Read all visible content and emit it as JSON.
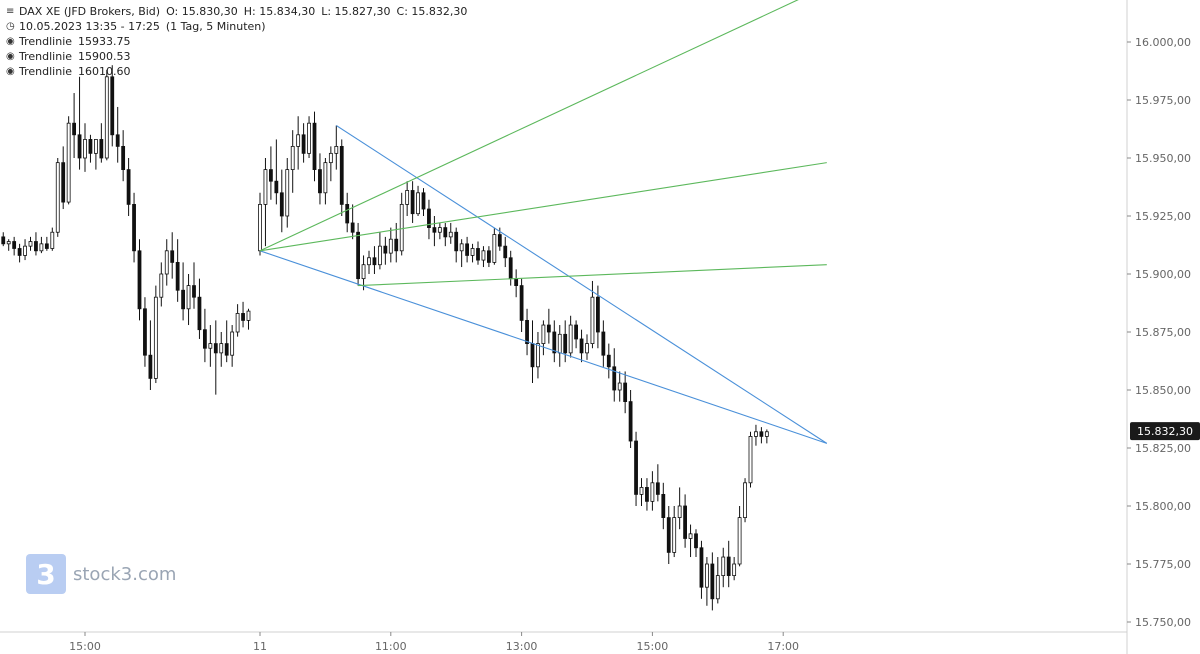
{
  "legend": {
    "symbol_line": {
      "icon": "bar-chart-icon",
      "symbol": "DAX XE (JFD Brokers, Bid)",
      "open": "O: 15.830,30",
      "high": "H: 15.834,30",
      "low": "L: 15.827,30",
      "close": "C: 15.832,30"
    },
    "time_line": {
      "icon": "clock-icon",
      "range": "10.05.2023 13:35 - 17:25",
      "interval": "(1 Tag, 5 Minuten)"
    },
    "trendlines": [
      {
        "icon": "target-icon",
        "label": "Trendlinie",
        "value": "15933.75"
      },
      {
        "icon": "target-icon",
        "label": "Trendlinie",
        "value": "15900.53"
      },
      {
        "icon": "target-icon",
        "label": "Trendlinie",
        "value": "16010.60"
      }
    ]
  },
  "watermark": {
    "logo_glyph": "3",
    "text": "stock3.com"
  },
  "chart_data": {
    "type": "candlestick",
    "symbol": "DAX XE (JFD Brokers, Bid)",
    "interval": "5 Minuten",
    "ylim": [
      15745,
      16025
    ],
    "y_ticks": [
      16000,
      15975,
      15950,
      15925,
      15900,
      15875,
      15850,
      15825,
      15800,
      15775,
      15750
    ],
    "y_tick_labels": [
      "16.000,00",
      "15.975,00",
      "15.950,00",
      "15.925,00",
      "15.900,00",
      "15.875,00",
      "15.850,00",
      "15.825,00",
      "15.800,00",
      "15.775,00",
      "15.750,00"
    ],
    "x_ticks": [
      {
        "label": "15:00",
        "day": 10,
        "time": "15:00"
      },
      {
        "label": "11",
        "day": 11,
        "time": "09:00"
      },
      {
        "label": "11:00",
        "day": 11,
        "time": "11:00"
      },
      {
        "label": "13:00",
        "day": 11,
        "time": "13:00"
      },
      {
        "label": "15:00",
        "day": 11,
        "time": "15:00"
      },
      {
        "label": "17:00",
        "day": 11,
        "time": "17:00"
      }
    ],
    "last_price": 15832.3,
    "last_price_label": "15.832,30",
    "grid": false,
    "candles": [
      [
        "10.05. 13:35",
        15916,
        15918,
        15912,
        15915
      ],
      [
        "10.05. 13:40",
        15915,
        15919,
        15913,
        15916
      ],
      [
        "10.05. 13:45",
        15916,
        15918,
        15912,
        15913
      ],
      [
        "10.05. 13:50",
        15913,
        15915,
        15910,
        15914
      ],
      [
        "10.05. 13:55",
        15914,
        15916,
        15908,
        15911
      ],
      [
        "10.05. 14:00",
        15911,
        15913,
        15905,
        15908
      ],
      [
        "10.05. 14:05",
        15908,
        15915,
        15906,
        15912
      ],
      [
        "10.05. 14:10",
        15912,
        15916,
        15910,
        15914
      ],
      [
        "10.05. 14:15",
        15914,
        15918,
        15908,
        15910
      ],
      [
        "10.05. 14:20",
        15910,
        15916,
        15909,
        15913
      ],
      [
        "10.05. 14:25",
        15913,
        15916,
        15910,
        15911
      ],
      [
        "10.05. 14:30",
        15911,
        15920,
        15910,
        15918
      ],
      [
        "10.05. 14:35",
        15918,
        15950,
        15916,
        15948
      ],
      [
        "10.05. 14:40",
        15948,
        15955,
        15928,
        15931
      ],
      [
        "10.05. 14:45",
        15931,
        15968,
        15930,
        15965
      ],
      [
        "10.05. 14:50",
        15965,
        15978,
        15950,
        15960
      ],
      [
        "10.05. 14:55",
        15960,
        15985,
        15945,
        15950
      ],
      [
        "10.05. 15:00",
        15950,
        15965,
        15944,
        15958
      ],
      [
        "10.05. 15:05",
        15958,
        15960,
        15948,
        15952
      ],
      [
        "10.05. 15:10",
        15952,
        15958,
        15945,
        15958
      ],
      [
        "10.05. 15:15",
        15958,
        15965,
        15948,
        15950
      ],
      [
        "10.05. 15:20",
        15950,
        15988,
        15949,
        15985
      ],
      [
        "10.05. 15:25",
        15985,
        15990,
        15955,
        15960
      ],
      [
        "10.05. 15:30",
        15960,
        15972,
        15948,
        15955
      ],
      [
        "10.05. 15:35",
        15955,
        15962,
        15940,
        15945
      ],
      [
        "10.05. 15:40",
        15945,
        15950,
        15925,
        15930
      ],
      [
        "10.05. 15:45",
        15930,
        15935,
        15905,
        15910
      ],
      [
        "10.05. 15:50",
        15910,
        15915,
        15880,
        15885
      ],
      [
        "10.05. 15:55",
        15885,
        15890,
        15860,
        15865
      ],
      [
        "10.05. 16:00",
        15865,
        15880,
        15850,
        15855
      ],
      [
        "10.05. 16:05",
        15855,
        15895,
        15853,
        15890
      ],
      [
        "10.05. 16:10",
        15890,
        15905,
        15886,
        15900
      ],
      [
        "10.05. 16:15",
        15900,
        15915,
        15895,
        15910
      ],
      [
        "10.05. 16:20",
        15910,
        15918,
        15898,
        15905
      ],
      [
        "10.05. 16:25",
        15905,
        15915,
        15888,
        15893
      ],
      [
        "10.05. 16:30",
        15893,
        15905,
        15880,
        15885
      ],
      [
        "10.05. 16:35",
        15885,
        15900,
        15878,
        15895
      ],
      [
        "10.05. 16:40",
        15895,
        15905,
        15885,
        15890
      ],
      [
        "10.05. 16:45",
        15890,
        15898,
        15872,
        15876
      ],
      [
        "10.05. 16:50",
        15876,
        15885,
        15862,
        15868
      ],
      [
        "10.05. 16:55",
        15868,
        15878,
        15860,
        15870
      ],
      [
        "10.05. 17:00",
        15870,
        15880,
        15848,
        15866
      ],
      [
        "10.05. 17:05",
        15866,
        15875,
        15860,
        15870
      ],
      [
        "10.05. 17:10",
        15870,
        15880,
        15862,
        15865
      ],
      [
        "10.05. 17:15",
        15865,
        15878,
        15860,
        15875
      ],
      [
        "10.05. 17:20",
        15875,
        15887,
        15873,
        15883
      ],
      [
        "10.05. 17:25",
        15883,
        15888,
        15877,
        15880
      ],
      [
        "10.05. 17:30",
        15880,
        15885,
        15876,
        15884
      ],
      [
        "11.05. 09:00",
        15910,
        15935,
        15908,
        15930
      ],
      [
        "11.05. 09:05",
        15930,
        15950,
        15912,
        15945
      ],
      [
        "11.05. 09:10",
        15945,
        15955,
        15932,
        15940
      ],
      [
        "11.05. 09:15",
        15940,
        15958,
        15930,
        15935
      ],
      [
        "11.05. 09:20",
        15935,
        15945,
        15918,
        15925
      ],
      [
        "11.05. 09:25",
        15925,
        15950,
        15920,
        15945
      ],
      [
        "11.05. 09:30",
        15945,
        15962,
        15935,
        15955
      ],
      [
        "11.05. 09:35",
        15955,
        15968,
        15945,
        15960
      ],
      [
        "11.05. 09:40",
        15960,
        15965,
        15948,
        15952
      ],
      [
        "11.05. 09:45",
        15952,
        15968,
        15950,
        15965
      ],
      [
        "11.05. 09:50",
        15965,
        15970,
        15940,
        15945
      ],
      [
        "11.05. 09:55",
        15945,
        15952,
        15930,
        15935
      ],
      [
        "11.05. 10:00",
        15935,
        15950,
        15930,
        15948
      ],
      [
        "11.05. 10:05",
        15948,
        15955,
        15940,
        15952
      ],
      [
        "11.05. 10:10",
        15952,
        15964,
        15945,
        15955
      ],
      [
        "11.05. 10:15",
        15955,
        15958,
        15925,
        15930
      ],
      [
        "11.05. 10:20",
        15930,
        15935,
        15918,
        15922
      ],
      [
        "11.05. 10:25",
        15922,
        15930,
        15915,
        15918
      ],
      [
        "11.05. 10:30",
        15918,
        15922,
        15895,
        15898
      ],
      [
        "11.05. 10:35",
        15898,
        15908,
        15893,
        15904
      ],
      [
        "11.05. 10:40",
        15904,
        15910,
        15900,
        15907
      ],
      [
        "11.05. 10:45",
        15907,
        15912,
        15900,
        15904
      ],
      [
        "11.05. 10:50",
        15904,
        15918,
        15902,
        15912
      ],
      [
        "11.05. 10:55",
        15912,
        15916,
        15904,
        15909
      ],
      [
        "11.05. 11:00",
        15909,
        15920,
        15905,
        15915
      ],
      [
        "11.05. 11:05",
        15915,
        15922,
        15905,
        15910
      ],
      [
        "11.05. 11:10",
        15910,
        15935,
        15908,
        15930
      ],
      [
        "11.05. 11:15",
        15930,
        15940,
        15925,
        15936
      ],
      [
        "11.05. 11:20",
        15936,
        15940,
        15922,
        15926
      ],
      [
        "11.05. 11:25",
        15926,
        15938,
        15925,
        15935
      ],
      [
        "11.05. 11:30",
        15935,
        15937,
        15925,
        15928
      ],
      [
        "11.05. 11:35",
        15928,
        15932,
        15915,
        15920
      ],
      [
        "11.05. 11:40",
        15920,
        15925,
        15912,
        15918
      ],
      [
        "11.05. 11:45",
        15918,
        15922,
        15915,
        15920
      ],
      [
        "11.05. 11:50",
        15920,
        15922,
        15912,
        15916
      ],
      [
        "11.05. 11:55",
        15916,
        15922,
        15913,
        15918
      ],
      [
        "11.05. 12:00",
        15918,
        15920,
        15905,
        15910
      ],
      [
        "11.05. 12:05",
        15910,
        15915,
        15903,
        15913
      ],
      [
        "11.05. 12:10",
        15913,
        15916,
        15905,
        15908
      ],
      [
        "11.05. 12:15",
        15908,
        15913,
        15905,
        15911
      ],
      [
        "11.05. 12:20",
        15911,
        15914,
        15904,
        15906
      ],
      [
        "11.05. 12:25",
        15906,
        15912,
        15903,
        15910
      ],
      [
        "11.05. 12:30",
        15910,
        15912,
        15903,
        15905
      ],
      [
        "11.05. 12:35",
        15905,
        15920,
        15904,
        15917
      ],
      [
        "11.05. 12:40",
        15917,
        15920,
        15910,
        15912
      ],
      [
        "11.05. 12:45",
        15912,
        15916,
        15903,
        15907
      ],
      [
        "11.05. 12:50",
        15907,
        15910,
        15895,
        15898
      ],
      [
        "11.05. 12:55",
        15898,
        15902,
        15890,
        15895
      ],
      [
        "11.05. 13:00",
        15895,
        15898,
        15875,
        15880
      ],
      [
        "11.05. 13:05",
        15880,
        15885,
        15865,
        15870
      ],
      [
        "11.05. 13:10",
        15870,
        15880,
        15853,
        15860
      ],
      [
        "11.05. 13:15",
        15860,
        15875,
        15855,
        15870
      ],
      [
        "11.05. 13:20",
        15870,
        15880,
        15865,
        15878
      ],
      [
        "11.05. 13:25",
        15878,
        15885,
        15870,
        15875
      ],
      [
        "11.05. 13:30",
        15875,
        15880,
        15862,
        15866
      ],
      [
        "11.05. 13:35",
        15866,
        15878,
        15860,
        15874
      ],
      [
        "11.05. 13:40",
        15874,
        15880,
        15862,
        15866
      ],
      [
        "11.05. 13:45",
        15866,
        15882,
        15864,
        15878
      ],
      [
        "11.05. 13:50",
        15878,
        15880,
        15868,
        15872
      ],
      [
        "11.05. 13:55",
        15872,
        15876,
        15862,
        15866
      ],
      [
        "11.05. 14:00",
        15866,
        15874,
        15863,
        15870
      ],
      [
        "11.05. 14:05",
        15870,
        15897,
        15868,
        15890
      ],
      [
        "11.05. 14:10",
        15890,
        15895,
        15868,
        15875
      ],
      [
        "11.05. 14:15",
        15875,
        15880,
        15860,
        15865
      ],
      [
        "11.05. 14:20",
        15865,
        15870,
        15855,
        15860
      ],
      [
        "11.05. 14:25",
        15860,
        15868,
        15845,
        15850
      ],
      [
        "11.05. 14:30",
        15850,
        15858,
        15845,
        15853
      ],
      [
        "11.05. 14:35",
        15853,
        15858,
        15840,
        15845
      ],
      [
        "11.05. 14:40",
        15845,
        15850,
        15825,
        15828
      ],
      [
        "11.05. 14:45",
        15828,
        15832,
        15800,
        15805
      ],
      [
        "11.05. 14:50",
        15805,
        15812,
        15800,
        15808
      ],
      [
        "11.05. 14:55",
        15808,
        15812,
        15798,
        15802
      ],
      [
        "11.05. 15:00",
        15802,
        15815,
        15798,
        15810
      ],
      [
        "11.05. 15:05",
        15810,
        15818,
        15802,
        15805
      ],
      [
        "11.05. 15:10",
        15805,
        15810,
        15790,
        15795
      ],
      [
        "11.05. 15:15",
        15795,
        15800,
        15775,
        15780
      ],
      [
        "11.05. 15:20",
        15780,
        15800,
        15778,
        15795
      ],
      [
        "11.05. 15:25",
        15795,
        15808,
        15790,
        15800
      ],
      [
        "11.05. 15:30",
        15800,
        15805,
        15782,
        15786
      ],
      [
        "11.05. 15:35",
        15786,
        15792,
        15778,
        15788
      ],
      [
        "11.05. 15:40",
        15788,
        15790,
        15778,
        15782
      ],
      [
        "11.05. 15:45",
        15782,
        15785,
        15760,
        15765
      ],
      [
        "11.05. 15:50",
        15765,
        15778,
        15757,
        15775
      ],
      [
        "11.05. 15:55",
        15775,
        15780,
        15755,
        15760
      ],
      [
        "11.05. 16:00",
        15760,
        15778,
        15758,
        15770
      ],
      [
        "11.05. 16:05",
        15770,
        15782,
        15765,
        15778
      ],
      [
        "11.05. 16:10",
        15778,
        15785,
        15765,
        15770
      ],
      [
        "11.05. 16:15",
        15770,
        15778,
        15768,
        15775
      ],
      [
        "11.05. 16:20",
        15775,
        15800,
        15774,
        15795
      ],
      [
        "11.05. 16:25",
        15795,
        15812,
        15793,
        15810
      ],
      [
        "11.05. 16:30",
        15810,
        15832,
        15808,
        15830
      ],
      [
        "11.05. 16:35",
        15830,
        15835,
        15826,
        15832
      ],
      [
        "11.05. 16:40",
        15832,
        15834,
        15827,
        15830
      ],
      [
        "11.05. 16:45",
        15830,
        15833,
        15827,
        15832
      ]
    ],
    "trendlines": [
      {
        "name": "Trendlinie",
        "color": "#4a90d9",
        "from": [
          "11.05. 09:00",
          15910
        ],
        "to": [
          "11.05. 17:40",
          15827
        ]
      },
      {
        "name": "Trendlinie",
        "color": "#4a90d9",
        "from": [
          "11.05. 10:10",
          15964
        ],
        "to": [
          "11.05. 17:40",
          15827
        ]
      },
      {
        "name": "Trendlinie",
        "color": "#5cb85c",
        "from": [
          "11.05. 09:00",
          15910
        ],
        "to": [
          "11.05. 17:40",
          16024
        ]
      },
      {
        "name": "Trendlinie",
        "color": "#5cb85c",
        "from": [
          "11.05. 09:00",
          15910
        ],
        "to": [
          "11.05. 17:40",
          15948
        ]
      },
      {
        "name": "Trendlinie",
        "color": "#5cb85c",
        "from": [
          "11.05. 10:30",
          15895
        ],
        "to": [
          "11.05. 17:40",
          15904
        ]
      }
    ]
  }
}
